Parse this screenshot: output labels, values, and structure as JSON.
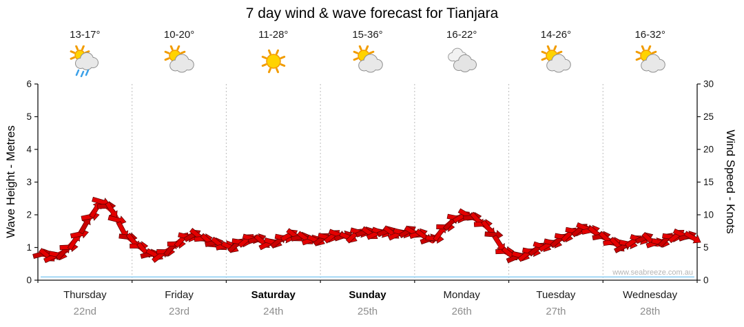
{
  "title": "7 day wind & wave forecast for Tianjara",
  "watermark": "www.seabreeze.com.au",
  "days": [
    {
      "name": "Thursday",
      "date": "22nd",
      "temp": "13-17°",
      "icon": "sun-cloud-showers",
      "weekend": false
    },
    {
      "name": "Friday",
      "date": "23rd",
      "temp": "10-20°",
      "icon": "sun-cloud",
      "weekend": false
    },
    {
      "name": "Saturday",
      "date": "24th",
      "temp": "11-28°",
      "icon": "sunny",
      "weekend": true
    },
    {
      "name": "Sunday",
      "date": "25th",
      "temp": "15-36°",
      "icon": "sun-cloud",
      "weekend": true
    },
    {
      "name": "Monday",
      "date": "26th",
      "temp": "16-22°",
      "icon": "cloudy",
      "weekend": false
    },
    {
      "name": "Tuesday",
      "date": "27th",
      "temp": "14-26°",
      "icon": "sun-cloud",
      "weekend": false
    },
    {
      "name": "Wednesday",
      "date": "28th",
      "temp": "16-32°",
      "icon": "sun-cloud",
      "weekend": false
    }
  ],
  "chart_data": {
    "type": "area",
    "title": "7 day wind & wave forecast for Tianjara",
    "x_categories": [
      "Thursday 22nd",
      "Friday 23rd",
      "Saturday 24th",
      "Sunday 25th",
      "Monday 26th",
      "Tuesday 27th",
      "Wednesday 28th"
    ],
    "left_axis": {
      "label": "Wave Height - Metres",
      "min": 0,
      "max": 6,
      "ticks": [
        0,
        1,
        2,
        3,
        4,
        5,
        6
      ]
    },
    "right_axis": {
      "label": "Wind Speed - Knots",
      "min": 0,
      "max": 30,
      "ticks": [
        0,
        5,
        10,
        15,
        20,
        25,
        30
      ]
    },
    "grid": {
      "vertical_day_separators": true,
      "horizontal": false
    },
    "legend": "none",
    "series": [
      {
        "name": "Wind Speed",
        "unit": "knots",
        "axis": "right",
        "color": "#e30000",
        "style": "wind-arrows",
        "values": [
          4.0,
          3.5,
          4.5,
          6.5,
          9.5,
          12.0,
          10.5,
          7.0,
          5.5,
          4.0,
          3.8,
          5.0,
          6.5,
          7.0,
          6.0,
          5.5,
          5.0,
          6.0,
          6.5,
          5.5,
          6.0,
          7.0,
          6.5,
          6.0,
          6.5,
          7.0,
          6.5,
          7.5,
          7.0,
          7.5,
          7.0,
          7.5,
          7.0,
          6.0,
          8.0,
          9.5,
          10.0,
          9.0,
          7.5,
          4.5,
          3.5,
          4.0,
          5.0,
          5.5,
          6.5,
          7.5,
          8.0,
          7.0,
          6.0,
          5.0,
          6.0,
          6.5,
          5.5,
          6.5,
          7.0,
          6.5
        ]
      },
      {
        "name": "Wave Height",
        "unit": "metres",
        "axis": "left",
        "color": "#a6d8f5",
        "style": "line",
        "values": [
          0.1,
          0.1,
          0.1,
          0.1,
          0.1,
          0.1,
          0.1,
          0.1
        ]
      }
    ]
  },
  "colors": {
    "background": "#ffffff",
    "axis": "#111111",
    "day_separator": "#bbbbbb",
    "date_label": "#8d8d8d",
    "wind_fill": "#e30000",
    "wave_line": "#a6d8f5"
  }
}
